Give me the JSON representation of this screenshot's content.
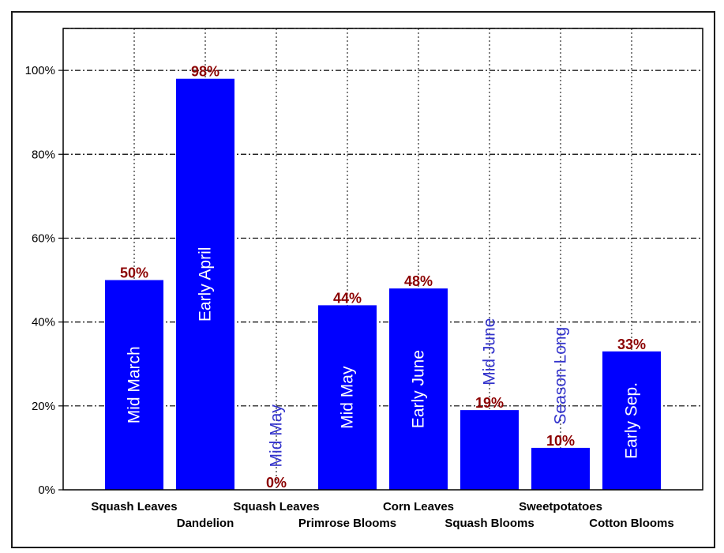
{
  "chart_data": {
    "type": "bar",
    "title": "",
    "xlabel": "",
    "ylabel": "",
    "ylim": [
      0,
      110
    ],
    "yticks": [
      0,
      20,
      40,
      60,
      80,
      100
    ],
    "ytick_labels": [
      "0%",
      "20%",
      "40%",
      "60%",
      "80%",
      "100%"
    ],
    "grid": true,
    "bar_color": "#0000ff",
    "value_label_color": "#8b0000",
    "inner_label_color": "#ffffff",
    "outer_label_color": "#3333cc",
    "categories": [
      "Squash Leaves",
      "Dandelion",
      "Squash Leaves",
      "Primrose Blooms",
      "Corn Leaves",
      "Squash Blooms",
      "Sweetpotatoes",
      "Cotton Blooms"
    ],
    "values": [
      50,
      98,
      0,
      44,
      48,
      19,
      10,
      33
    ],
    "value_labels": [
      "50%",
      "98%",
      "0%",
      "44%",
      "48%",
      "19%",
      "10%",
      "33%"
    ],
    "bar_labels": [
      "Mid March",
      "Early April",
      "Mid May",
      "Mid May",
      "Early June",
      "Mid June",
      "Season Long",
      "Early Sep."
    ]
  }
}
